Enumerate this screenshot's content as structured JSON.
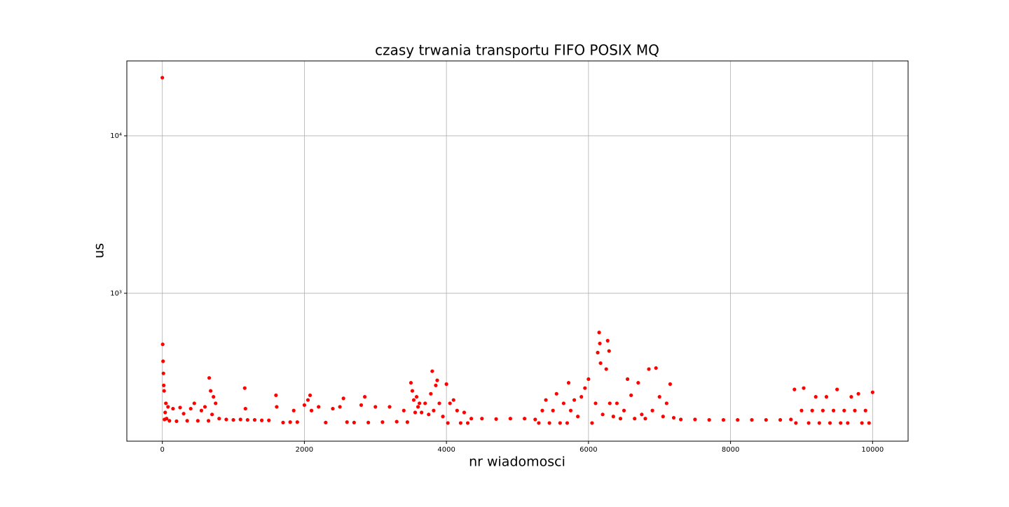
{
  "chart_data": {
    "type": "scatter",
    "title": "czasy trwania transportu FIFO POSIX MQ",
    "xlabel": "nr wiadomosci",
    "ylabel": "us",
    "color": "#ff0000",
    "log_y": true,
    "grid": true,
    "xlim": [
      -500,
      10500
    ],
    "xticks": [
      0,
      2000,
      4000,
      6000,
      8000,
      10000
    ],
    "ylim": [
      115,
      29900
    ],
    "yticks": [
      {
        "value": 1000,
        "label": "10³"
      },
      {
        "value": 10000,
        "label": "10⁴"
      }
    ],
    "x": [
      0,
      5,
      10,
      15,
      20,
      25,
      30,
      40,
      50,
      60,
      80,
      100,
      150,
      200,
      250,
      300,
      350,
      400,
      450,
      500,
      550,
      600,
      650,
      660,
      680,
      700,
      720,
      750,
      800,
      900,
      1000,
      1100,
      1160,
      1170,
      1200,
      1300,
      1400,
      1500,
      1600,
      1610,
      1700,
      1800,
      1850,
      1900,
      2000,
      2050,
      2080,
      2100,
      2200,
      2300,
      2400,
      2500,
      2550,
      2600,
      2700,
      2800,
      2850,
      2900,
      3000,
      3100,
      3200,
      3300,
      3400,
      3450,
      3500,
      3520,
      3540,
      3560,
      3580,
      3600,
      3620,
      3650,
      3700,
      3750,
      3780,
      3800,
      3820,
      3850,
      3870,
      3900,
      3950,
      4000,
      4020,
      4050,
      4100,
      4150,
      4200,
      4250,
      4300,
      4350,
      4500,
      4700,
      4900,
      5100,
      5250,
      5300,
      5350,
      5400,
      5450,
      5500,
      5550,
      5600,
      5650,
      5700,
      5720,
      5750,
      5800,
      5850,
      5900,
      5950,
      6000,
      6050,
      6100,
      6130,
      6150,
      6160,
      6170,
      6200,
      6250,
      6270,
      6290,
      6300,
      6350,
      6400,
      6450,
      6500,
      6550,
      6600,
      6650,
      6700,
      6750,
      6800,
      6850,
      6900,
      6950,
      7000,
      7050,
      7100,
      7150,
      7200,
      7300,
      7500,
      7700,
      7900,
      8100,
      8300,
      8500,
      8700,
      8850,
      8900,
      8920,
      9000,
      9030,
      9100,
      9150,
      9200,
      9250,
      9300,
      9350,
      9400,
      9450,
      9500,
      9550,
      9600,
      9650,
      9700,
      9750,
      9800,
      9850,
      9900,
      9950,
      10000
    ],
    "y": [
      23400,
      474,
      370,
      310,
      260,
      240,
      158,
      175,
      200,
      160,
      190,
      155,
      185,
      154,
      188,
      172,
      155,
      185,
      200,
      155,
      180,
      190,
      155,
      290,
      240,
      170,
      220,
      200,
      160,
      158,
      157,
      158,
      250,
      185,
      157,
      157,
      156,
      156,
      225,
      190,
      151,
      152,
      180,
      152,
      195,
      210,
      225,
      180,
      190,
      151,
      185,
      190,
      215,
      152,
      151,
      195,
      220,
      151,
      190,
      152,
      190,
      153,
      180,
      152,
      270,
      240,
      210,
      175,
      220,
      190,
      200,
      175,
      200,
      170,
      230,
      320,
      180,
      260,
      280,
      200,
      165,
      265,
      150,
      200,
      210,
      180,
      150,
      175,
      150,
      160,
      160,
      159,
      160,
      160,
      158,
      150,
      180,
      210,
      150,
      180,
      230,
      150,
      200,
      150,
      270,
      180,
      210,
      165,
      220,
      250,
      285,
      150,
      200,
      420,
      564,
      480,
      360,
      170,
      330,
      500,
      430,
      200,
      165,
      200,
      160,
      180,
      285,
      225,
      160,
      270,
      170,
      160,
      330,
      180,
      335,
      220,
      165,
      200,
      265,
      162,
      158,
      158,
      157,
      157,
      157,
      157,
      157,
      157,
      158,
      245,
      150,
      180,
      250,
      150,
      180,
      220,
      150,
      180,
      220,
      150,
      180,
      245,
      150,
      180,
      150,
      220,
      180,
      230,
      150,
      180,
      150,
      235
    ]
  }
}
